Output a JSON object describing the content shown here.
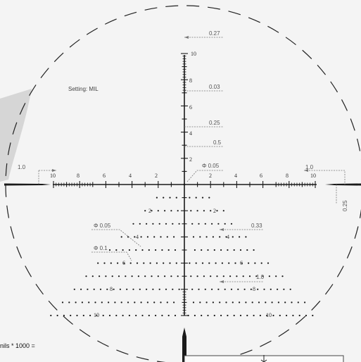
{
  "setting_label": "Setting: MIL",
  "formula_fragment": "nils * 1000 =",
  "top_scale": {
    "numbers": [
      "10",
      "8",
      "6",
      "4",
      "2"
    ],
    "annotations": [
      "0.27",
      "0.03",
      "0.25",
      "0.5"
    ]
  },
  "horizontal_scale": {
    "left_numbers": [
      "10",
      "8",
      "6",
      "4",
      "2"
    ],
    "right_numbers": [
      "2",
      "4",
      "6",
      "8",
      "10"
    ],
    "left_annotation": "1.0",
    "right_annotation": "1.0",
    "right_vertical_annotation": "0.25",
    "center_annotation": "Φ 0.05"
  },
  "lower_tree": {
    "row_labels": [
      "2",
      "4",
      "6",
      "8",
      "10"
    ],
    "annotations": [
      "Φ 0.05",
      "Φ 0.1",
      "0.33",
      "1.0"
    ]
  },
  "colors": {
    "background": "#f4f4f4",
    "reticle": "#1a1a1a",
    "annotation": "#777777",
    "overlay": "#d6d6d6"
  }
}
